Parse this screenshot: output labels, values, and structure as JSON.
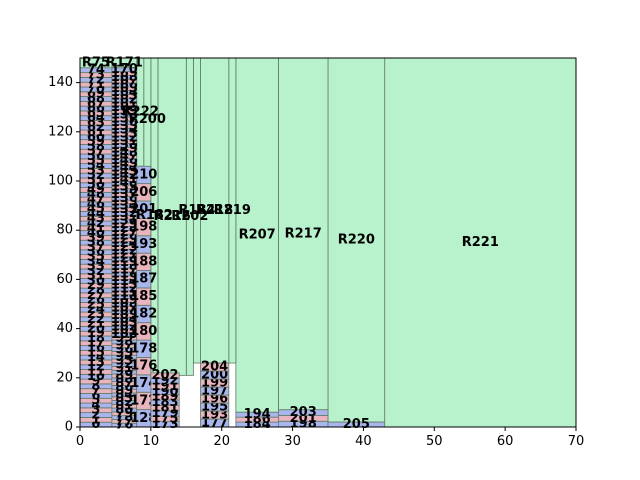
{
  "chart_data": {
    "type": "rectangle_packing",
    "title": "",
    "xlabel": "",
    "ylabel": "",
    "xlim": [
      0,
      70
    ],
    "ylim": [
      0,
      150
    ],
    "x_ticks": [
      0,
      10,
      20,
      30,
      40,
      50,
      60,
      70
    ],
    "y_ticks": [
      0,
      20,
      40,
      60,
      80,
      100,
      120,
      140
    ],
    "grid": false,
    "colors": {
      "blue_block": "#a9b6ee",
      "pink_block": "#eab4be",
      "green_block": "#b8f2cc",
      "edge": "#5f7a67"
    },
    "regions": [
      {
        "label": "R221",
        "x": [
          43,
          70
        ],
        "y": [
          0,
          150
        ],
        "color": "green"
      },
      {
        "label": "R220",
        "x": [
          35,
          43
        ],
        "y": [
          2,
          150
        ],
        "color": "green"
      },
      {
        "label": "R217",
        "x": [
          28,
          35
        ],
        "y": [
          7,
          150
        ],
        "color": "green"
      },
      {
        "label": "R207",
        "x": [
          22,
          28
        ],
        "y": [
          6,
          150
        ],
        "color": "green"
      },
      {
        "label": "R219",
        "x": [
          21,
          22
        ],
        "y": [
          26,
          150
        ],
        "color": "green"
      },
      {
        "label": "R218",
        "x": [
          17,
          21
        ],
        "y": [
          26,
          150
        ],
        "color": "green"
      },
      {
        "label": "R184",
        "x": [
          16,
          17
        ],
        "y": [
          26,
          150
        ],
        "color": "green"
      },
      {
        "label": "R202",
        "x": [
          15,
          16
        ],
        "y": [
          21,
          150
        ],
        "color": "green"
      },
      {
        "label": "R216",
        "x": [
          11,
          15
        ],
        "y": [
          21,
          150
        ],
        "color": "green"
      },
      {
        "label": "R182",
        "x": [
          10,
          11
        ],
        "y": [
          22,
          150
        ],
        "color": "green"
      },
      {
        "label": "R200",
        "x": [
          9,
          10
        ],
        "y": [
          100,
          150
        ],
        "color": "green"
      },
      {
        "label": "R222",
        "x": [
          8,
          9
        ],
        "y": [
          106,
          150
        ],
        "color": "green"
      },
      {
        "label": "R171",
        "x": [
          4.5,
          8
        ],
        "y": [
          146,
          150
        ],
        "color": "green"
      },
      {
        "label": "R75",
        "x": [
          0,
          4.5
        ],
        "y": [
          146,
          150
        ],
        "color": "green"
      }
    ],
    "column_left": {
      "x": [
        0,
        4.5
      ],
      "labels_bottom_to_top": [
        "0",
        "1",
        "2",
        "3",
        "4",
        "5",
        "6",
        "7",
        "8",
        "9",
        "10",
        "11",
        "12",
        "13",
        "14",
        "15",
        "16",
        "17",
        "18",
        "19",
        "20",
        "21",
        "22",
        "23",
        "24",
        "25",
        "26",
        "27",
        "28",
        "29",
        "30",
        "31",
        "32",
        "33",
        "34",
        "35",
        "36",
        "37",
        "38",
        "39",
        "40",
        "41",
        "42",
        "43",
        "44",
        "45",
        "46",
        "47",
        "48",
        "49",
        "50",
        "51",
        "52",
        "53",
        "54",
        "55",
        "56",
        "57",
        "58",
        "59",
        "60",
        "61",
        "62",
        "63",
        "64",
        "65",
        "66",
        "67",
        "68",
        "69",
        "70",
        "71",
        "72",
        "73",
        "74"
      ]
    },
    "column_mid": {
      "x": [
        4.5,
        8
      ],
      "labels_bottom_to_top": [
        "76",
        "77",
        "78",
        "79",
        "80",
        "81",
        "82",
        "83",
        "84",
        "85",
        "86",
        "87",
        "88",
        "89",
        "90",
        "91",
        "92",
        "93",
        "94",
        "95",
        "96",
        "97",
        "98",
        "99",
        "100",
        "101",
        "102",
        "103",
        "104",
        "105",
        "106",
        "107",
        "108",
        "109",
        "110",
        "111",
        "112",
        "113",
        "114",
        "115",
        "116",
        "117",
        "118",
        "119",
        "120",
        "121",
        "122",
        "123",
        "124",
        "125",
        "126",
        "127",
        "128",
        "129",
        "130",
        "131",
        "132",
        "133",
        "134",
        "135",
        "136",
        "137",
        "138",
        "139",
        "140",
        "141",
        "142",
        "143",
        "144",
        "145",
        "146",
        "147",
        "148",
        "149",
        "150",
        "151",
        "152",
        "153",
        "154",
        "155",
        "156",
        "157",
        "158",
        "159",
        "160",
        "161",
        "162",
        "163",
        "164",
        "165",
        "166",
        "167",
        "168",
        "169",
        "170"
      ]
    },
    "column_right": {
      "x": [
        8,
        10
      ],
      "labels_bottom_to_top": [
        "128",
        "172",
        "174",
        "176",
        "178",
        "180",
        "182",
        "185",
        "187",
        "188",
        "193",
        "198",
        "201",
        "206",
        "210"
      ]
    },
    "column_c10": {
      "x": [
        10,
        14
      ],
      "labels_bottom_to_top": [
        "173",
        "175",
        "179",
        "181",
        "183",
        "189",
        "190",
        "191",
        "192",
        "202"
      ]
    },
    "column_c17": {
      "x": [
        17,
        21
      ],
      "labels_bottom_to_top": [
        "177",
        "193",
        "195",
        "196",
        "197",
        "199",
        "200",
        "204"
      ]
    },
    "column_c22": {
      "x": [
        22,
        28
      ],
      "labels_bottom_to_top": [
        "184",
        "186",
        "194"
      ]
    },
    "column_c28": {
      "x": [
        28,
        35
      ],
      "labels_bottom_to_top": [
        "198",
        "201",
        "203"
      ]
    },
    "column_c35": {
      "x": [
        35,
        43
      ],
      "labels_bottom_to_top": [
        "205"
      ]
    }
  }
}
